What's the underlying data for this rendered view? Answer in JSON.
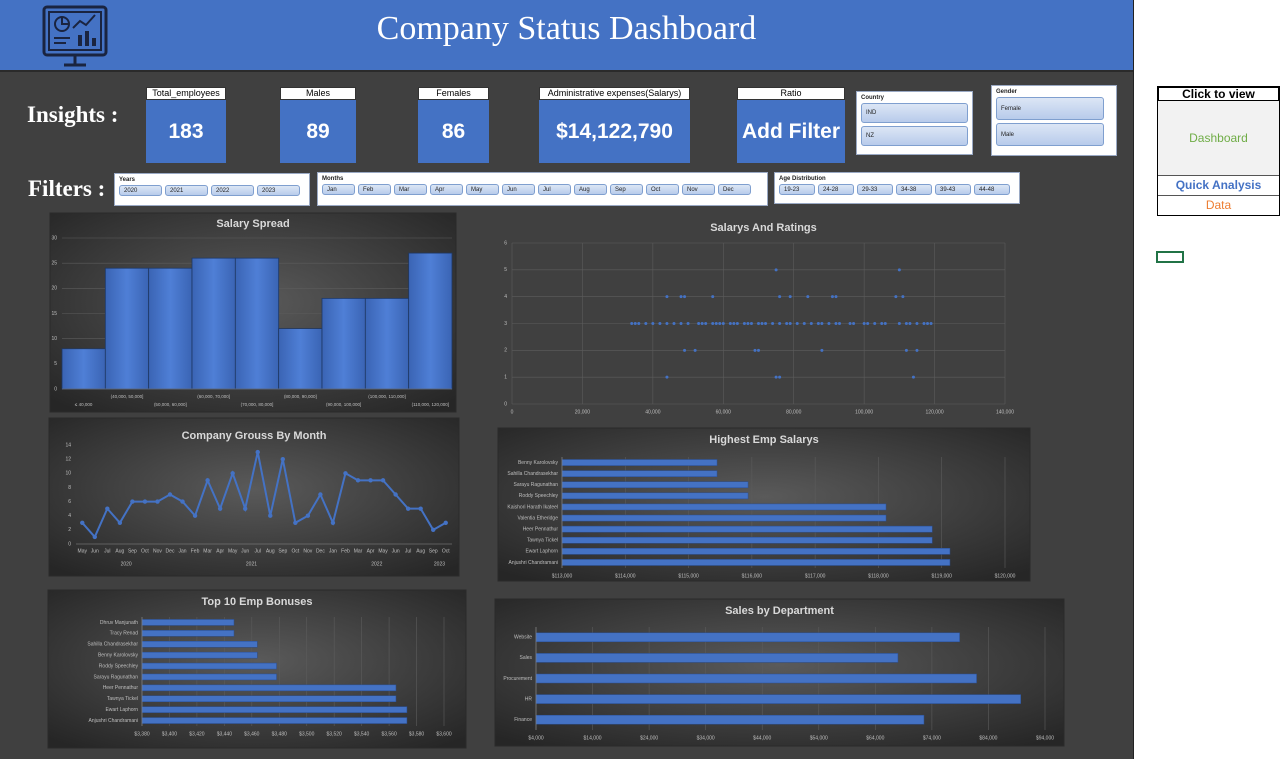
{
  "header": {
    "title": "Company Status Dashboard"
  },
  "insights": {
    "label": "Insights :",
    "cards": [
      {
        "label": "Total_employees",
        "value": 183
      },
      {
        "label": "Males",
        "value": 89
      },
      {
        "label": "Females",
        "value": 86
      },
      {
        "label": "Administrative expenses(Salarys)",
        "value": "$14,122,790"
      },
      {
        "label": "Ratio",
        "value": "Add Filter"
      }
    ]
  },
  "filters": {
    "label": "Filters :",
    "slicers": [
      {
        "title": "Country",
        "items": [
          "IND",
          "NZ"
        ]
      },
      {
        "title": "Gender",
        "items": [
          "Female",
          "Male"
        ]
      },
      {
        "title": "Years",
        "items": [
          "2020",
          "2021",
          "2022",
          "2023"
        ]
      },
      {
        "title": "Months",
        "items": [
          "Jan",
          "Feb",
          "Mar",
          "Apr",
          "May",
          "Jun",
          "Jul",
          "Aug",
          "Sep",
          "Oct",
          "Nov",
          "Dec"
        ]
      },
      {
        "title": "Age Distribution",
        "items": [
          "19-23",
          "24-28",
          "29-33",
          "34-38",
          "39-43",
          "44-48"
        ]
      }
    ]
  },
  "side_panel": {
    "heading": "Click to view",
    "links": [
      "Dashboard",
      "Quick Analysis",
      "Data"
    ]
  },
  "chart_data": [
    {
      "type": "bar",
      "title": "Salary Spread",
      "color": "#4472c4",
      "grid": true,
      "categories": [
        "≤ 40,000",
        "(40,000, 50,000]",
        "(50,000, 60,000]",
        "(60,000, 70,000]",
        "(70,000, 80,000]",
        "(80,000, 90,000]",
        "(90,000, 100,000]",
        "(100,000, 110,000]",
        "(110,000, 120,000]"
      ],
      "values": [
        8,
        24,
        24,
        26,
        26,
        12,
        18,
        18,
        27
      ],
      "ylim": [
        0,
        30
      ],
      "yticks": [
        0,
        5,
        10,
        15,
        20,
        25,
        30
      ]
    },
    {
      "type": "scatter",
      "title": "Salarys And Ratings",
      "color": "#4472c4",
      "grid": true,
      "x": [
        44000,
        75000,
        76000,
        114000,
        49000,
        52000,
        69000,
        70000,
        88000,
        112000,
        115000,
        34000,
        35000,
        36000,
        38000,
        40000,
        42000,
        44000,
        46000,
        48000,
        50000,
        53000,
        54000,
        55000,
        57000,
        58000,
        59000,
        60000,
        62000,
        63000,
        64000,
        66000,
        67000,
        68000,
        70000,
        71000,
        72000,
        74000,
        76000,
        78000,
        79000,
        81000,
        83000,
        85000,
        87000,
        88000,
        90000,
        92000,
        93000,
        96000,
        97000,
        100000,
        101000,
        103000,
        105000,
        106000,
        110000,
        112000,
        113000,
        115000,
        117000,
        118000,
        119000,
        44000,
        48000,
        49000,
        57000,
        76000,
        79000,
        84000,
        91000,
        92000,
        109000,
        111000,
        75000,
        110000
      ],
      "values": [
        1,
        1,
        1,
        1,
        2,
        2,
        2,
        2,
        2,
        2,
        2,
        3,
        3,
        3,
        3,
        3,
        3,
        3,
        3,
        3,
        3,
        3,
        3,
        3,
        3,
        3,
        3,
        3,
        3,
        3,
        3,
        3,
        3,
        3,
        3,
        3,
        3,
        3,
        3,
        3,
        3,
        3,
        3,
        3,
        3,
        3,
        3,
        3,
        3,
        3,
        3,
        3,
        3,
        3,
        3,
        3,
        3,
        3,
        3,
        3,
        3,
        3,
        3,
        4,
        4,
        4,
        4,
        4,
        4,
        4,
        4,
        4,
        4,
        4,
        5,
        5
      ],
      "xlim": [
        0,
        140000
      ],
      "xticks": [
        0,
        {
          "value": 20000,
          "label": "20,000"
        },
        {
          "value": 40000,
          "label": "40,000"
        },
        {
          "value": 60000,
          "label": "60,000"
        },
        {
          "value": 80000,
          "label": "80,000"
        },
        {
          "value": 100000,
          "label": "100,000"
        },
        {
          "value": 120000,
          "label": "120,000"
        },
        {
          "value": 140000,
          "label": "140,000"
        }
      ],
      "ylim": [
        0,
        6
      ],
      "yticks": [
        0,
        1,
        2,
        3,
        4,
        5,
        6
      ]
    },
    {
      "type": "line",
      "title": "Company Grouss  By Month",
      "color": "#4472c4",
      "grid": false,
      "categories": [
        "May",
        "Jun",
        "Jul",
        "Aug",
        "Sep",
        "Oct",
        "Nov",
        "Dec",
        "Jan",
        "Feb",
        "Mar",
        "Apr",
        "May",
        "Jun",
        "Jul",
        "Aug",
        "Sep",
        "Oct",
        "Nov",
        "Dec",
        "Jan",
        "Feb",
        "Mar",
        "Apr",
        "May",
        "Jun",
        "Jul",
        "Aug",
        "Sep",
        "Oct"
      ],
      "x_groups": [
        {
          "label": "2020",
          "count": 8
        },
        {
          "label": "2021",
          "count": 12
        },
        {
          "label": "2022",
          "count": 8
        },
        {
          "label": "2023",
          "count": 2
        }
      ],
      "values": [
        3,
        1,
        5,
        3,
        6,
        6,
        6,
        7,
        6,
        4,
        9,
        5,
        10,
        5,
        13,
        4,
        12,
        3,
        4,
        7,
        3,
        10,
        9,
        9,
        9,
        7,
        5,
        5,
        2,
        3
      ],
      "ylim": [
        0,
        14
      ],
      "yticks": [
        0,
        2,
        4,
        6,
        8,
        10,
        12,
        14
      ]
    },
    {
      "type": "hbar",
      "title": "Highest Emp Salarys",
      "color": "#4472c4",
      "grid": true,
      "categories": [
        "Benny Karolovsky",
        "Sahilla Chandrasekhar",
        "Sarayu Ragunathan",
        "Roddy Speechley",
        "Kaishori Harath Ikateel",
        "Valentia Etheridge",
        "Heer Pennathur",
        "Tawnya Tickel",
        "Ewart Laphorn",
        "Anjushri Chandramani"
      ],
      "values": [
        115450,
        115450,
        115940,
        115940,
        118120,
        118120,
        118850,
        118850,
        119130,
        119130
      ],
      "xlim": [
        113000,
        120000
      ],
      "xticks": [
        {
          "value": 113000,
          "label": "$113,000"
        },
        {
          "value": 114000,
          "label": "$114,000"
        },
        {
          "value": 115000,
          "label": "$115,000"
        },
        {
          "value": 116000,
          "label": "$116,000"
        },
        {
          "value": 117000,
          "label": "$117,000"
        },
        {
          "value": 118000,
          "label": "$118,000"
        },
        {
          "value": 119000,
          "label": "$119,000"
        },
        {
          "value": 120000,
          "label": "$120,000"
        }
      ]
    },
    {
      "type": "hbar",
      "title": "Top 10 Emp Bonuses",
      "color": "#4472c4",
      "grid": true,
      "categories": [
        "Dhruv Manjunath",
        "Tracy Renad",
        "Sahilla Chandrasekhar",
        "Benny Karolovsky",
        "Roddy Speechley",
        "Sarayu Ragunathan",
        "Heer Pennathur",
        "Tawnya Tickel",
        "Ewart Laphorn",
        "Anjushri Chandramani"
      ],
      "values": [
        3447,
        3447,
        3464,
        3464,
        3478,
        3478,
        3565,
        3565,
        3573,
        3573
      ],
      "xlim": [
        3380,
        3600
      ],
      "xticks": [
        {
          "value": 3380,
          "label": "$3,380"
        },
        {
          "value": 3400,
          "label": "$3,400"
        },
        {
          "value": 3420,
          "label": "$3,420"
        },
        {
          "value": 3440,
          "label": "$3,440"
        },
        {
          "value": 3460,
          "label": "$3,460"
        },
        {
          "value": 3480,
          "label": "$3,480"
        },
        {
          "value": 3500,
          "label": "$3,500"
        },
        {
          "value": 3520,
          "label": "$3,520"
        },
        {
          "value": 3540,
          "label": "$3,540"
        },
        {
          "value": 3560,
          "label": "$3,560"
        },
        {
          "value": 3580,
          "label": "$3,580"
        },
        {
          "value": 3600,
          "label": "$3,600"
        }
      ]
    },
    {
      "type": "hbar",
      "title": "Sales by Department",
      "color": "#4472c4",
      "grid": true,
      "categories": [
        "Website",
        "Sales",
        "Procurement",
        "HR",
        "Finance"
      ],
      "values": [
        78900,
        68000,
        81900,
        89700,
        72600
      ],
      "xlim": [
        4000,
        94000
      ],
      "xticks": [
        {
          "value": 4000,
          "label": "$4,000"
        },
        {
          "value": 14000,
          "label": "$14,000"
        },
        {
          "value": 24000,
          "label": "$24,000"
        },
        {
          "value": 34000,
          "label": "$34,000"
        },
        {
          "value": 44000,
          "label": "$44,000"
        },
        {
          "value": 54000,
          "label": "$54,000"
        },
        {
          "value": 64000,
          "label": "$64,000"
        },
        {
          "value": 74000,
          "label": "$74,000"
        },
        {
          "value": 84000,
          "label": "$84,000"
        },
        {
          "value": 94000,
          "label": "$94,000"
        }
      ]
    }
  ]
}
